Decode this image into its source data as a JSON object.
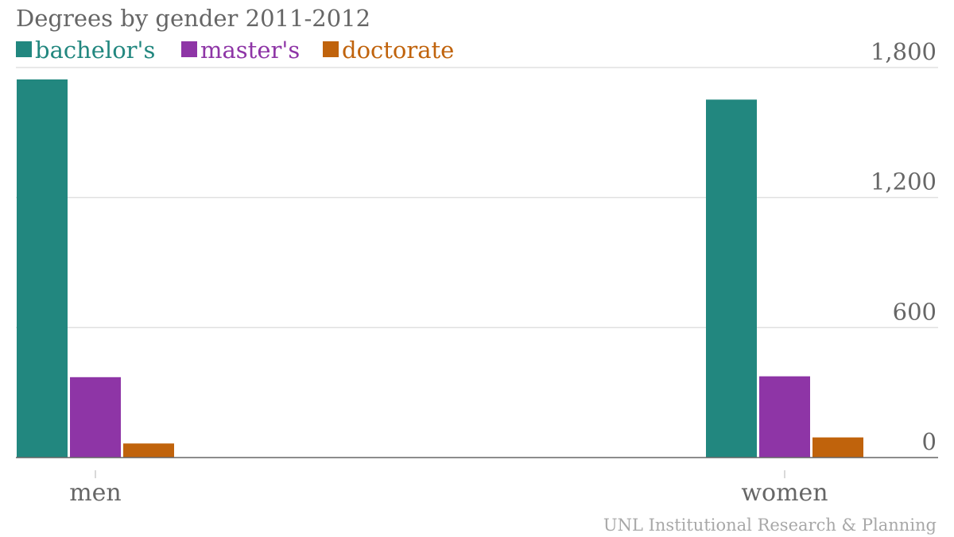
{
  "chart_data": {
    "type": "bar",
    "title": "Degrees by gender 2011-2012",
    "categories": [
      "men",
      "women"
    ],
    "series": [
      {
        "name": "bachelor's",
        "color": "#22877f",
        "values": [
          1745,
          1652
        ]
      },
      {
        "name": "master's",
        "color": "#8e35a6",
        "values": [
          371,
          375
        ]
      },
      {
        "name": "doctorate",
        "color": "#c0630c",
        "values": [
          65,
          93
        ]
      }
    ],
    "y_ticks": [
      {
        "value": 0,
        "label": "0"
      },
      {
        "value": 600,
        "label": "600"
      },
      {
        "value": 1200,
        "label": "1,200"
      },
      {
        "value": 1800,
        "label": "1,800"
      }
    ],
    "ylim": [
      0,
      1800
    ],
    "grid": true,
    "legend_position": "top-left",
    "source": "UNL Institutional Research & Planning"
  }
}
